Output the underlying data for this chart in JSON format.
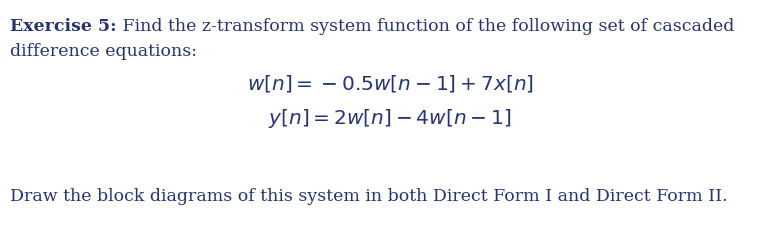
{
  "bold_label": "Exercise 5:",
  "intro_text": " Find the z-transform system function of the following set of cascaded",
  "line2_text": "difference equations:",
  "footer_text": "Draw the block diagrams of this system in both Direct Form I and Direct Form II.",
  "bg_color": "#ffffff",
  "text_color": "#253570",
  "font_size_body": 12.5,
  "font_size_eq": 14.5,
  "fig_width": 7.8,
  "fig_height": 2.26,
  "dpi": 100
}
